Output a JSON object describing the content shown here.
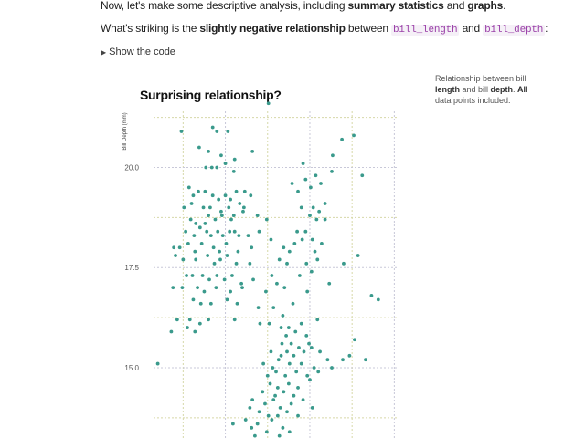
{
  "intro": {
    "p1_a": "Now, let's make some descriptive analysis, including ",
    "p1_b1": "summary statistics",
    "p1_c": " and ",
    "p1_b2": "graphs",
    "p1_d": ".",
    "p2_a": "What's striking is the ",
    "p2_b": "slightly negative relationship",
    "p2_c": " between ",
    "p2_code1": "bill_length",
    "p2_d": " and ",
    "p2_code2": "bill_depth",
    "p2_e": ":"
  },
  "toggle": {
    "label": "Show the code"
  },
  "caption": {
    "a": "Relationship between bill ",
    "b1": "length",
    "c": " and bill ",
    "b2": "depth",
    "d": ". ",
    "b3": "All",
    "e": " data points included."
  },
  "chart_data": {
    "type": "scatter",
    "title": "Surprising relationship?",
    "ylabel": "Bill Depth (mm)",
    "xlabel": "",
    "ylim": [
      13.2,
      21.4
    ],
    "xlim": [
      31.5,
      60.5
    ],
    "ytick_labels": [
      "20.0",
      "17.5",
      "15.0"
    ],
    "yticks": [
      20.0,
      17.5,
      15.0
    ],
    "grid": true,
    "colors": {
      "point": "#3a9a8c",
      "grid_major": "#d6d8a8",
      "grid_minor": "#c8c8d8"
    },
    "points": [
      [
        34.8,
        20.9
      ],
      [
        38.5,
        21.0
      ],
      [
        39.0,
        20.9
      ],
      [
        40.3,
        20.9
      ],
      [
        45.1,
        21.6
      ],
      [
        55.2,
        20.8
      ],
      [
        53.8,
        20.7
      ],
      [
        52.7,
        20.3
      ],
      [
        36.9,
        20.5
      ],
      [
        38.0,
        20.4
      ],
      [
        39.5,
        20.3
      ],
      [
        41.1,
        20.2
      ],
      [
        43.2,
        20.4
      ],
      [
        37.7,
        20.0
      ],
      [
        38.4,
        20.0
      ],
      [
        39.0,
        20.0
      ],
      [
        40.0,
        20.1
      ],
      [
        41.0,
        19.9
      ],
      [
        49.2,
        20.1
      ],
      [
        50.7,
        19.8
      ],
      [
        52.6,
        19.9
      ],
      [
        56.2,
        19.8
      ],
      [
        47.9,
        19.6
      ],
      [
        48.6,
        19.4
      ],
      [
        49.5,
        19.7
      ],
      [
        50.1,
        19.5
      ],
      [
        51.3,
        19.6
      ],
      [
        35.7,
        19.5
      ],
      [
        36.2,
        19.3
      ],
      [
        36.8,
        19.4
      ],
      [
        37.6,
        19.4
      ],
      [
        38.5,
        19.3
      ],
      [
        39.2,
        19.2
      ],
      [
        40.0,
        19.3
      ],
      [
        40.6,
        19.2
      ],
      [
        41.3,
        19.4
      ],
      [
        42.3,
        19.4
      ],
      [
        43.0,
        19.3
      ],
      [
        35.1,
        19.0
      ],
      [
        36.0,
        19.1
      ],
      [
        37.4,
        19.0
      ],
      [
        38.2,
        19.0
      ],
      [
        39.5,
        18.9
      ],
      [
        40.4,
        19.0
      ],
      [
        41.7,
        19.1
      ],
      [
        42.2,
        19.0
      ],
      [
        49.0,
        19.0
      ],
      [
        50.4,
        19.0
      ],
      [
        51.1,
        18.9
      ],
      [
        51.8,
        19.1
      ],
      [
        50.0,
        18.8
      ],
      [
        50.8,
        18.7
      ],
      [
        51.8,
        18.7
      ],
      [
        49.5,
        18.4
      ],
      [
        35.9,
        18.7
      ],
      [
        36.5,
        18.6
      ],
      [
        37.6,
        18.6
      ],
      [
        38.0,
        18.8
      ],
      [
        38.8,
        18.7
      ],
      [
        39.6,
        18.8
      ],
      [
        40.7,
        18.7
      ],
      [
        41.0,
        18.8
      ],
      [
        42.1,
        18.9
      ],
      [
        43.8,
        18.8
      ],
      [
        44.9,
        18.7
      ],
      [
        35.3,
        18.4
      ],
      [
        36.3,
        18.3
      ],
      [
        37.0,
        18.5
      ],
      [
        37.8,
        18.4
      ],
      [
        38.3,
        18.3
      ],
      [
        39.1,
        18.4
      ],
      [
        39.7,
        18.3
      ],
      [
        40.5,
        18.4
      ],
      [
        41.1,
        18.4
      ],
      [
        41.6,
        18.3
      ],
      [
        42.7,
        18.3
      ],
      [
        44.0,
        18.4
      ],
      [
        45.4,
        18.2
      ],
      [
        48.5,
        18.4
      ],
      [
        49.1,
        18.2
      ],
      [
        50.3,
        18.2
      ],
      [
        51.4,
        18.1
      ],
      [
        33.9,
        18.0
      ],
      [
        34.6,
        18.0
      ],
      [
        35.6,
        18.1
      ],
      [
        36.4,
        17.9
      ],
      [
        37.2,
        18.1
      ],
      [
        38.6,
        18.0
      ],
      [
        39.3,
        17.9
      ],
      [
        40.1,
        18.1
      ],
      [
        41.5,
        17.9
      ],
      [
        43.1,
        18.0
      ],
      [
        46.9,
        18.0
      ],
      [
        47.6,
        17.9
      ],
      [
        48.2,
        18.1
      ],
      [
        50.6,
        17.9
      ],
      [
        55.7,
        17.8
      ],
      [
        34.1,
        17.8
      ],
      [
        35.0,
        17.7
      ],
      [
        36.5,
        17.7
      ],
      [
        37.9,
        17.8
      ],
      [
        38.7,
        17.6
      ],
      [
        39.4,
        17.7
      ],
      [
        40.2,
        17.8
      ],
      [
        41.3,
        17.6
      ],
      [
        42.9,
        17.6
      ],
      [
        46.4,
        17.7
      ],
      [
        47.3,
        17.6
      ],
      [
        49.6,
        17.6
      ],
      [
        50.9,
        17.7
      ],
      [
        54.0,
        17.6
      ],
      [
        35.4,
        17.3
      ],
      [
        36.1,
        17.3
      ],
      [
        37.3,
        17.3
      ],
      [
        38.1,
        17.2
      ],
      [
        39.0,
        17.3
      ],
      [
        39.9,
        17.2
      ],
      [
        40.8,
        17.3
      ],
      [
        41.9,
        17.1
      ],
      [
        43.3,
        17.2
      ],
      [
        45.5,
        17.3
      ],
      [
        46.1,
        17.1
      ],
      [
        48.8,
        17.3
      ],
      [
        50.2,
        17.4
      ],
      [
        52.3,
        17.1
      ],
      [
        33.8,
        17.0
      ],
      [
        34.9,
        17.0
      ],
      [
        36.7,
        17.0
      ],
      [
        37.5,
        16.9
      ],
      [
        38.9,
        17.0
      ],
      [
        40.6,
        16.9
      ],
      [
        42.0,
        17.0
      ],
      [
        44.8,
        16.9
      ],
      [
        47.0,
        17.0
      ],
      [
        49.7,
        16.9
      ],
      [
        57.3,
        16.8
      ],
      [
        58.1,
        16.7
      ],
      [
        36.2,
        16.7
      ],
      [
        37.1,
        16.6
      ],
      [
        38.3,
        16.6
      ],
      [
        40.2,
        16.7
      ],
      [
        41.4,
        16.6
      ],
      [
        43.9,
        16.5
      ],
      [
        45.7,
        16.5
      ],
      [
        48.0,
        16.6
      ],
      [
        46.8,
        16.3
      ],
      [
        34.3,
        16.2
      ],
      [
        35.8,
        16.2
      ],
      [
        37.0,
        16.1
      ],
      [
        38.0,
        16.2
      ],
      [
        41.1,
        16.2
      ],
      [
        44.1,
        16.1
      ],
      [
        45.2,
        16.1
      ],
      [
        46.6,
        16.0
      ],
      [
        47.5,
        16.0
      ],
      [
        49.0,
        16.1
      ],
      [
        50.9,
        16.2
      ],
      [
        33.6,
        15.9
      ],
      [
        35.5,
        16.0
      ],
      [
        36.4,
        15.9
      ],
      [
        47.2,
        15.8
      ],
      [
        48.3,
        15.9
      ],
      [
        49.6,
        15.8
      ],
      [
        55.3,
        15.7
      ],
      [
        46.7,
        15.6
      ],
      [
        47.8,
        15.6
      ],
      [
        48.7,
        15.5
      ],
      [
        49.9,
        15.6
      ],
      [
        45.4,
        15.4
      ],
      [
        46.6,
        15.3
      ],
      [
        47.3,
        15.4
      ],
      [
        48.1,
        15.3
      ],
      [
        49.3,
        15.4
      ],
      [
        50.2,
        15.5
      ],
      [
        51.2,
        15.4
      ],
      [
        52.1,
        15.2
      ],
      [
        53.9,
        15.2
      ],
      [
        54.7,
        15.3
      ],
      [
        56.6,
        15.2
      ],
      [
        32.0,
        15.1
      ],
      [
        44.5,
        15.1
      ],
      [
        45.6,
        15.0
      ],
      [
        46.3,
        15.2
      ],
      [
        47.6,
        15.1
      ],
      [
        49.0,
        15.1
      ],
      [
        50.5,
        15.0
      ],
      [
        52.6,
        15.0
      ],
      [
        45.0,
        14.8
      ],
      [
        46.0,
        14.9
      ],
      [
        47.1,
        14.8
      ],
      [
        48.4,
        14.9
      ],
      [
        49.7,
        14.8
      ],
      [
        50.0,
        14.7
      ],
      [
        51.0,
        14.9
      ],
      [
        45.3,
        14.6
      ],
      [
        46.2,
        14.5
      ],
      [
        47.5,
        14.6
      ],
      [
        48.6,
        14.5
      ],
      [
        44.4,
        14.4
      ],
      [
        45.9,
        14.3
      ],
      [
        46.9,
        14.4
      ],
      [
        48.1,
        14.3
      ],
      [
        43.2,
        14.2
      ],
      [
        44.7,
        14.1
      ],
      [
        45.7,
        14.2
      ],
      [
        46.5,
        14.0
      ],
      [
        47.8,
        14.1
      ],
      [
        49.2,
        14.2
      ],
      [
        50.3,
        14.0
      ],
      [
        42.9,
        14.0
      ],
      [
        44.0,
        13.9
      ],
      [
        45.1,
        13.8
      ],
      [
        46.2,
        13.8
      ],
      [
        47.3,
        13.9
      ],
      [
        48.6,
        13.8
      ],
      [
        42.4,
        13.7
      ],
      [
        43.8,
        13.6
      ],
      [
        45.5,
        13.7
      ],
      [
        46.8,
        13.5
      ],
      [
        40.9,
        13.6
      ],
      [
        43.1,
        13.5
      ],
      [
        44.9,
        13.4
      ],
      [
        46.4,
        13.3
      ],
      [
        47.6,
        13.4
      ],
      [
        42.1,
        13.2
      ],
      [
        43.5,
        13.3
      ],
      [
        44.2,
        13.2
      ],
      [
        46.1,
        13.2
      ]
    ]
  }
}
